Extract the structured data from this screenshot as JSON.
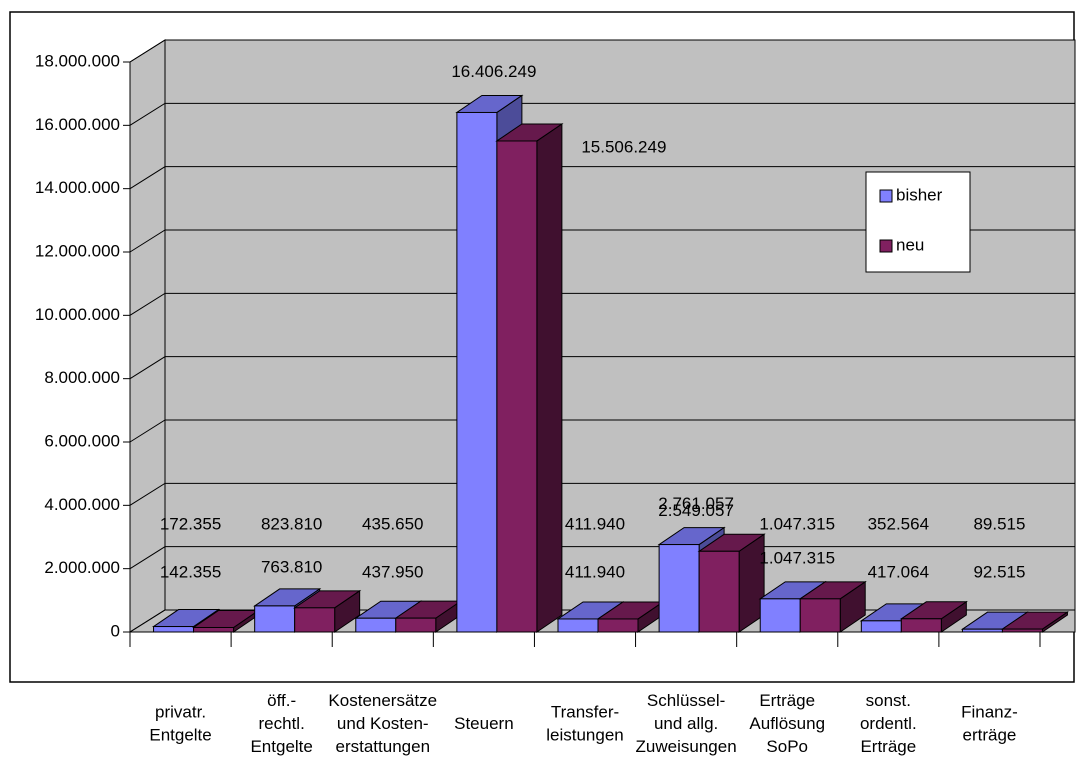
{
  "chart_data": {
    "type": "bar3d",
    "categories": [
      [
        "privatr.",
        "Entgelte"
      ],
      [
        "öff.-",
        "rechtl.",
        "Entgelte"
      ],
      [
        "Kostenersätze",
        "und Kosten-",
        "erstattungen"
      ],
      [
        "Steuern"
      ],
      [
        "Transfer-",
        "leistungen"
      ],
      [
        "Schlüssel-",
        "und allg.",
        "Zuweisungen"
      ],
      [
        "Erträge",
        "Auflösung",
        "SoPo"
      ],
      [
        "sonst.",
        "ordentl.",
        "Erträge"
      ],
      [
        "Finanz-",
        "erträge"
      ]
    ],
    "series": [
      {
        "name": "bisher",
        "color": "#8080ff",
        "side": "#4c4c99",
        "top": "#6666cc",
        "values": [
          172355,
          823810,
          435650,
          16406249,
          411940,
          2761057,
          1047315,
          352564,
          89515
        ],
        "value_labels": [
          "172.355",
          "823.810",
          "435.650",
          "16.406.249",
          "411.940",
          "2.761.057",
          "1.047.315",
          "352.564",
          "89.515"
        ]
      },
      {
        "name": "neu",
        "color": "#802060",
        "side": "#40102f",
        "top": "#66194c",
        "values": [
          142355,
          763810,
          437950,
          15506249,
          411940,
          2549057,
          1047315,
          417064,
          92515
        ],
        "value_labels": [
          "142.355",
          "763.810",
          "437.950",
          "15.506.249",
          "411.940",
          "2.549.057",
          "1.047.315",
          "417.064",
          "92.515"
        ]
      }
    ],
    "ylim": [
      0,
      18000000
    ],
    "yticks": [
      0,
      {
        "value": 2000000,
        "label": "2.000.000"
      },
      {
        "value": 4000000,
        "label": "4.000.000"
      },
      {
        "value": 6000000,
        "label": "6.000.000"
      },
      {
        "value": 8000000,
        "label": "8.000.000"
      },
      {
        "value": 10000000,
        "label": "10.000.000"
      },
      {
        "value": 12000000,
        "label": "12.000.000"
      },
      {
        "value": 14000000,
        "label": "14.000.000"
      },
      {
        "value": 16000000,
        "label": "16.000.000"
      },
      {
        "value": 18000000,
        "label": "18.000.000"
      }
    ],
    "grid": true,
    "legend": "right"
  }
}
